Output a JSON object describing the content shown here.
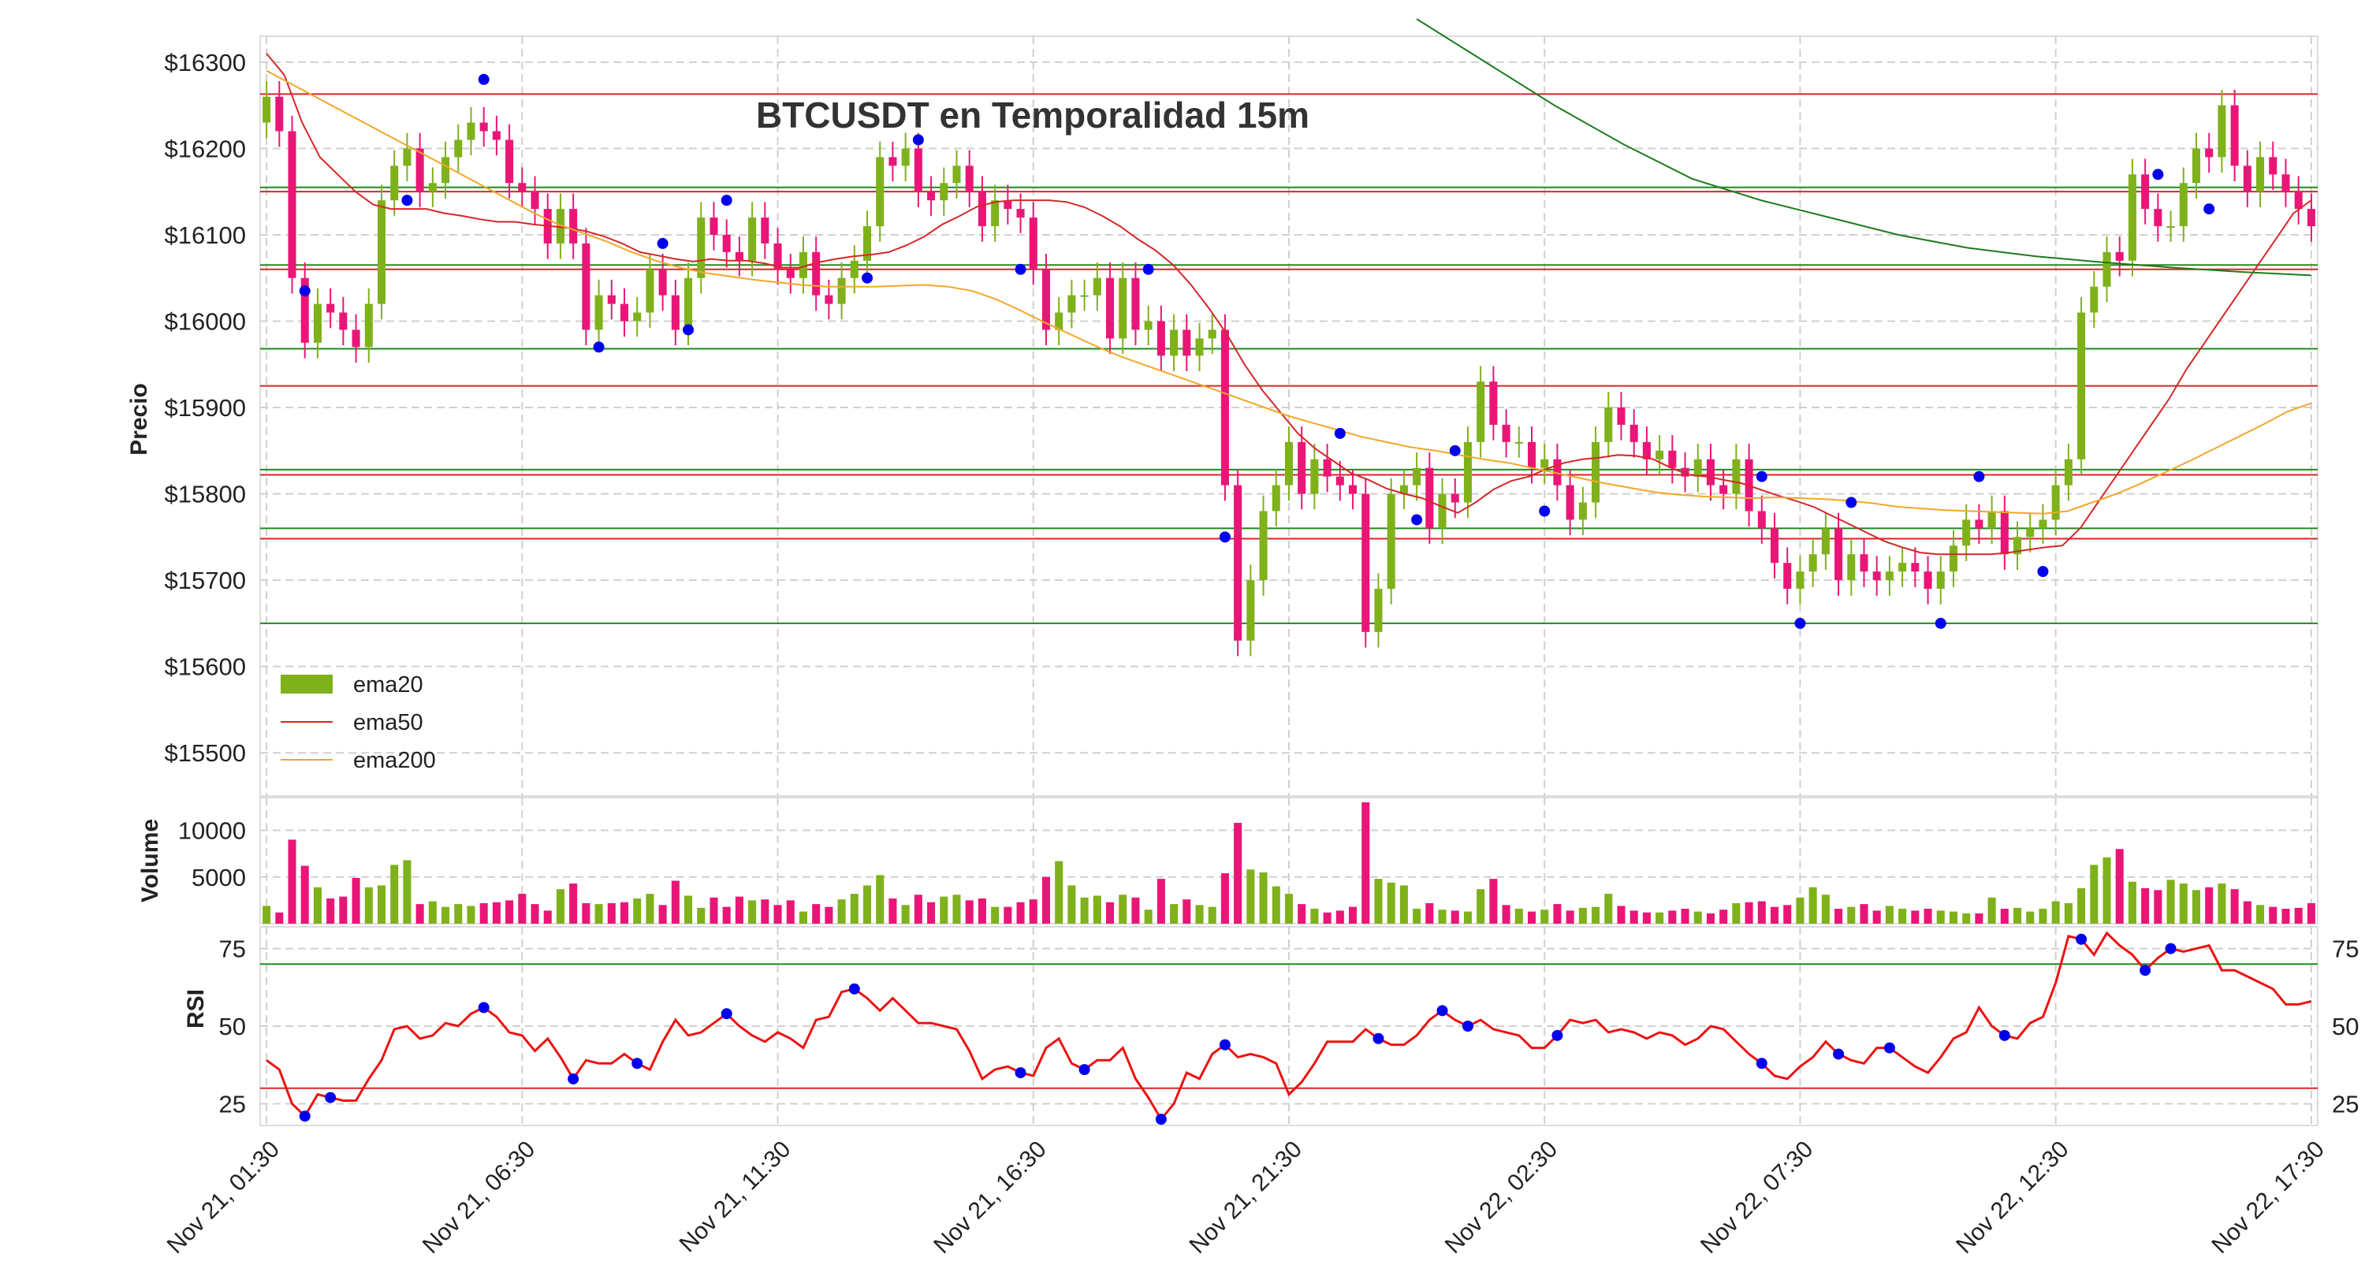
{
  "colors": {
    "up": "#7fb11b",
    "down": "#ea1677",
    "ema20": "#d62728",
    "ema50": "#f2a72a",
    "ema200": "#1e7b1e",
    "pivot": "#0000ee",
    "support": "#1e8c1e",
    "resistance": "#d62728",
    "rsi_line": "#ee1111"
  },
  "chart_data": {
    "type": "candlestick",
    "title": "BTCUSDT en Temporalidad 15m",
    "price_panel": {
      "ylabel": "Precio",
      "ylim": [
        15450,
        16330
      ],
      "yticks": [
        15500,
        15600,
        15700,
        15800,
        15900,
        16000,
        16100,
        16200,
        16300
      ],
      "ytick_labels": [
        "$15500",
        "$15600",
        "$15700",
        "$15800",
        "$15900",
        "$16000",
        "$16100",
        "$16200",
        "$16300"
      ],
      "grid": true,
      "legend": {
        "placement": "lower-left",
        "entries": [
          "ema20",
          "ema50",
          "ema200"
        ]
      },
      "green_levels": [
        16155,
        16065,
        15968,
        15828,
        15760,
        15650
      ],
      "red_levels": [
        16263,
        16150,
        16060,
        15925,
        15822,
        15748
      ]
    },
    "volume_panel": {
      "ylabel": "Volume",
      "ylim": [
        0,
        13000
      ],
      "yticks": [
        5000,
        10000
      ],
      "ytick_labels": [
        "5000",
        "10000"
      ]
    },
    "rsi_panel": {
      "ylabel": "RSI",
      "ylim": [
        18,
        82
      ],
      "yticks": [
        25,
        50,
        75
      ],
      "ytick_labels": [
        "25",
        "50",
        "75"
      ],
      "upper_level": 70,
      "lower_level": 30
    },
    "x_axis": {
      "ticks": [
        0,
        20,
        40,
        60,
        80,
        100,
        120,
        140,
        160
      ],
      "tick_labels": [
        "Nov 21, 01:30",
        "Nov 21, 06:30",
        "Nov 21, 11:30",
        "Nov 21, 16:30",
        "Nov 21, 21:30",
        "Nov 22, 02:30",
        "Nov 22, 07:30",
        "Nov 22, 12:30",
        "Nov 22, 17:30"
      ],
      "xlim": [
        -0.5,
        160.5
      ]
    },
    "candles_close": [
      16260,
      16220,
      16050,
      15975,
      16020,
      16010,
      15990,
      15970,
      16020,
      16140,
      16180,
      16200,
      16150,
      16160,
      16190,
      16210,
      16230,
      16220,
      16210,
      16160,
      16150,
      16130,
      16090,
      16130,
      16090,
      15990,
      16030,
      16020,
      16000,
      16010,
      16060,
      16030,
      15990,
      16050,
      16120,
      16100,
      16080,
      16070,
      16120,
      16090,
      16060,
      16050,
      16080,
      16030,
      16020,
      16050,
      16070,
      16110,
      16190,
      16180,
      16200,
      16150,
      16140,
      16160,
      16180,
      16150,
      16110,
      16140,
      16130,
      16120,
      16060,
      15990,
      16010,
      16030,
      16030,
      16050,
      15980,
      16050,
      15990,
      16000,
      15960,
      15990,
      15960,
      15980,
      15990,
      15810,
      15630,
      15700,
      15780,
      15810,
      15860,
      15800,
      15840,
      15820,
      15810,
      15800,
      15640,
      15690,
      15800,
      15810,
      15830,
      15760,
      15800,
      15790,
      15860,
      15930,
      15880,
      15860,
      15860,
      15830,
      15840,
      15810,
      15770,
      15790,
      15860,
      15900,
      15880,
      15860,
      15840,
      15850,
      15830,
      15820,
      15840,
      15810,
      15800,
      15840,
      15780,
      15760,
      15720,
      15690,
      15710,
      15730,
      15760,
      15700,
      15730,
      15710,
      15700,
      15710,
      15720,
      15710,
      15690,
      15710,
      15740,
      15770,
      15760,
      15780,
      15730,
      15750,
      15760,
      15770,
      15810,
      15840,
      16010,
      16040,
      16080,
      16070,
      16170,
      16130,
      16110,
      16110,
      16160,
      16200,
      16190,
      16250,
      16180,
      16150,
      16190,
      16170,
      16150,
      16130,
      16110
    ],
    "candles_volume": [
      1900,
      1200,
      9000,
      6200,
      3900,
      2700,
      2900,
      4900,
      3900,
      4100,
      6300,
      6800,
      2100,
      2400,
      1800,
      2100,
      1900,
      2200,
      2300,
      2500,
      3200,
      2100,
      1400,
      3700,
      4300,
      2200,
      2100,
      2200,
      2300,
      2700,
      3200,
      2000,
      4600,
      3000,
      1700,
      2800,
      1800,
      2900,
      2500,
      2600,
      2000,
      2500,
      1300,
      2100,
      1800,
      2600,
      3200,
      4100,
      5200,
      2700,
      2000,
      3100,
      2300,
      2900,
      3100,
      2500,
      2700,
      1800,
      1800,
      2300,
      2600,
      5000,
      6700,
      4100,
      2800,
      3000,
      2300,
      3100,
      2800,
      1500,
      4800,
      2100,
      2600,
      2000,
      1800,
      5400,
      10800,
      5800,
      5500,
      4000,
      3200,
      2100,
      1600,
      1200,
      1400,
      1800,
      13000,
      4800,
      4400,
      4100,
      1600,
      2200,
      1500,
      1400,
      1300,
      3700,
      4800,
      2000,
      1600,
      1300,
      1500,
      2100,
      1400,
      1700,
      1800,
      3200,
      1900,
      1400,
      1200,
      1200,
      1400,
      1600,
      1300,
      1100,
      1500,
      2200,
      2300,
      2400,
      1800,
      2000,
      2800,
      3900,
      3100,
      1600,
      1800,
      2100,
      1400,
      1900,
      1600,
      1400,
      1600,
      1400,
      1300,
      1100,
      1100,
      2800,
      1600,
      1700,
      1300,
      1600,
      2400,
      2200,
      3800,
      6300,
      7100,
      8000,
      4500,
      3800,
      3600,
      4700,
      4300,
      3600,
      3900,
      4300,
      3700,
      2400,
      2000,
      1800,
      1600,
      1700,
      2200
    ],
    "rsi": [
      39,
      36,
      25,
      21,
      28,
      27,
      26,
      26,
      33,
      39,
      49,
      50,
      46,
      47,
      51,
      50,
      54,
      56,
      53,
      48,
      47,
      42,
      46,
      40,
      33,
      39,
      38,
      38,
      41,
      38,
      36,
      45,
      52,
      47,
      48,
      51,
      54,
      50,
      47,
      45,
      48,
      46,
      43,
      52,
      53,
      61,
      62,
      59,
      55,
      59,
      55,
      51,
      51,
      50,
      49,
      42,
      33,
      36,
      37,
      35,
      34,
      43,
      46,
      38,
      36,
      39,
      39,
      43,
      33,
      27,
      20,
      25,
      35,
      33,
      41,
      44,
      40,
      41,
      40,
      38,
      28,
      32,
      38,
      45,
      45,
      45,
      49,
      46,
      44,
      44,
      47,
      52,
      55,
      52,
      50,
      52,
      49,
      48,
      47,
      43,
      43,
      47,
      52,
      51,
      52,
      48,
      49,
      48,
      46,
      48,
      47,
      44,
      46,
      50,
      49,
      45,
      41,
      38,
      34,
      33,
      37,
      40,
      45,
      41,
      39,
      38,
      43,
      43,
      40,
      37,
      35,
      40,
      46,
      48,
      56,
      50,
      47,
      46,
      51,
      53,
      64,
      79,
      78,
      73,
      80,
      76,
      73,
      68,
      72,
      75,
      74,
      75,
      76,
      68,
      68,
      66,
      64,
      62,
      57,
      57,
      58
    ],
    "ema20": [
      16310,
      16285,
      16230,
      16190,
      16170,
      16150,
      16135,
      16130,
      16130,
      16130,
      16125,
      16122,
      16118,
      16115,
      16115,
      16112,
      16110,
      16108,
      16104,
      16098,
      16090,
      16080,
      16076,
      16072,
      16069,
      16072,
      16070,
      16070,
      16067,
      16062,
      16062,
      16068,
      16072,
      16075,
      16077,
      16080,
      16088,
      16098,
      16112,
      16122,
      16133,
      16138,
      16140,
      16140,
      16140,
      16138,
      16132,
      16122,
      16110,
      16095,
      16082,
      16065,
      16042,
      16015,
      15985,
      15950,
      15920,
      15895,
      15870,
      15852,
      15838,
      15824,
      15816,
      15806,
      15800,
      15795,
      15786,
      15778,
      15790,
      15805,
      15815,
      15820,
      15829,
      15836,
      15840,
      15842,
      15845,
      15844,
      15840,
      15830,
      15822,
      15820,
      15816,
      15812,
      15805,
      15798,
      15792,
      15785,
      15775,
      15765,
      15755,
      15745,
      15738,
      15732,
      15730,
      15730,
      15730,
      15730,
      15732,
      15735,
      15738,
      15740,
      15760,
      15790,
      15820,
      15850,
      15880,
      15910,
      15945,
      15975,
      16005,
      16035,
      16065,
      16095,
      16125,
      16140
    ],
    "ema50": [
      16290,
      16275,
      16260,
      16245,
      16230,
      16215,
      16200,
      16185,
      16170,
      16155,
      16140,
      16125,
      16112,
      16102,
      16092,
      16080,
      16070,
      16062,
      16056,
      16052,
      16048,
      16045,
      16042,
      16040,
      16040,
      16040,
      16041,
      16042,
      16040,
      16035,
      16025,
      16012,
      15998,
      15985,
      15972,
      15960,
      15950,
      15940,
      15930,
      15920,
      15910,
      15900,
      15890,
      15882,
      15874,
      15866,
      15860,
      15854,
      15850,
      15845,
      15840,
      15836,
      15830,
      15824,
      15818,
      15812,
      15807,
      15802,
      15799,
      15797,
      15796,
      15795,
      15796,
      15795,
      15794,
      15792,
      15789,
      15785,
      15783,
      15781,
      15780,
      15779,
      15778,
      15777,
      15780,
      15790,
      15800,
      15812,
      15825,
      15838,
      15852,
      15866,
      15880,
      15895,
      15905
    ],
    "ema200": [
      16350,
      16300,
      16250,
      16205,
      16165,
      16140,
      16120,
      16100,
      16085,
      16075,
      16068,
      16062,
      16057,
      16053
    ]
  }
}
